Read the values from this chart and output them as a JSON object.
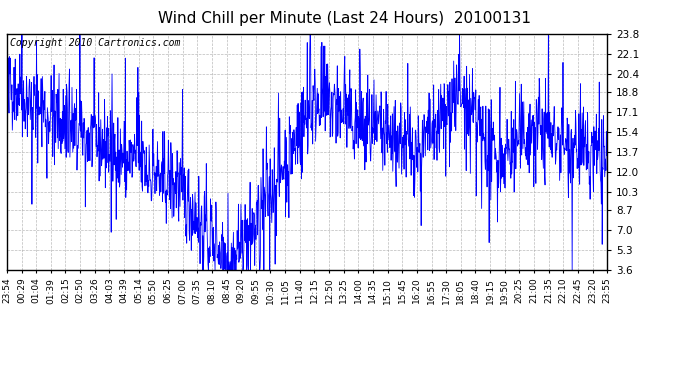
{
  "title": "Wind Chill per Minute (Last 24 Hours)  20100131",
  "copyright": "Copyright 2010 Cartronics.com",
  "line_color": "#0000FF",
  "bg_color": "#FFFFFF",
  "plot_bg_color": "#FFFFFF",
  "grid_color": "#AAAAAA",
  "yticks": [
    3.6,
    5.3,
    7.0,
    8.7,
    10.3,
    12.0,
    13.7,
    15.4,
    17.1,
    18.8,
    20.4,
    22.1,
    23.8
  ],
  "ylim": [
    3.6,
    23.8
  ],
  "xtick_labels": [
    "23:54",
    "00:29",
    "01:04",
    "01:39",
    "02:15",
    "02:50",
    "03:26",
    "04:03",
    "04:39",
    "05:14",
    "05:50",
    "06:25",
    "07:00",
    "07:35",
    "08:10",
    "08:45",
    "09:20",
    "09:55",
    "10:30",
    "11:05",
    "11:40",
    "12:15",
    "12:50",
    "13:25",
    "14:00",
    "14:35",
    "15:10",
    "15:45",
    "16:20",
    "16:55",
    "17:30",
    "18:05",
    "18:40",
    "19:15",
    "19:50",
    "20:25",
    "21:00",
    "21:35",
    "22:10",
    "22:45",
    "23:20",
    "23:55"
  ],
  "title_fontsize": 11,
  "copyright_fontsize": 7,
  "tick_fontsize": 6.5,
  "ytick_fontsize": 7.5,
  "linewidth": 0.6
}
